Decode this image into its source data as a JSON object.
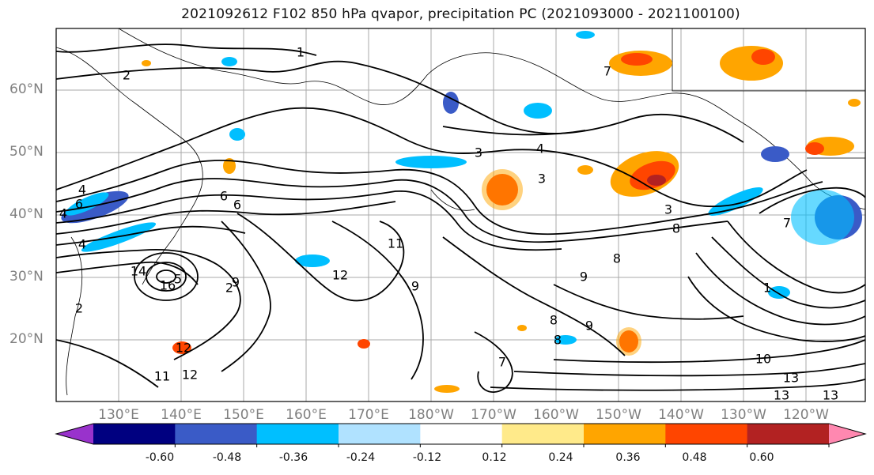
{
  "title": "2021092612 F102 850 hPa qvapor, precipitation PC (2021093000 - 2021100100)",
  "lat_labels": [
    "60°N",
    "50°N",
    "40°N",
    "30°N",
    "20°N"
  ],
  "lon_labels": [
    "130°E",
    "140°E",
    "150°E",
    "160°E",
    "170°E",
    "180°W",
    "170°W",
    "160°W",
    "150°W",
    "140°W",
    "130°W",
    "120°W"
  ],
  "contour_labels": [
    "1",
    "2",
    "3",
    "4",
    "4",
    "3",
    "3",
    "7",
    "8",
    "8",
    "9",
    "9",
    "8",
    "8",
    "9",
    "11",
    "12",
    "12",
    "10",
    "13",
    "13",
    "13",
    "14",
    "16",
    "2",
    "9",
    "7",
    "11",
    "12",
    "6",
    "4",
    "4",
    "6",
    "5",
    "6",
    "7",
    "1",
    "2"
  ],
  "colorbar": {
    "colors": [
      "#9932cc",
      "#000080",
      "#3a5bc7",
      "#00bfff",
      "#b0e2ff",
      "#ffffff",
      "#ffea8a",
      "#ffa500",
      "#ff4500",
      "#b22222",
      "#ff88b0"
    ],
    "tick_labels": [
      "-0.60",
      "-0.48",
      "-0.36",
      "-0.24",
      "-0.12",
      "0.12",
      "0.24",
      "0.36",
      "0.48",
      "0.60"
    ]
  }
}
